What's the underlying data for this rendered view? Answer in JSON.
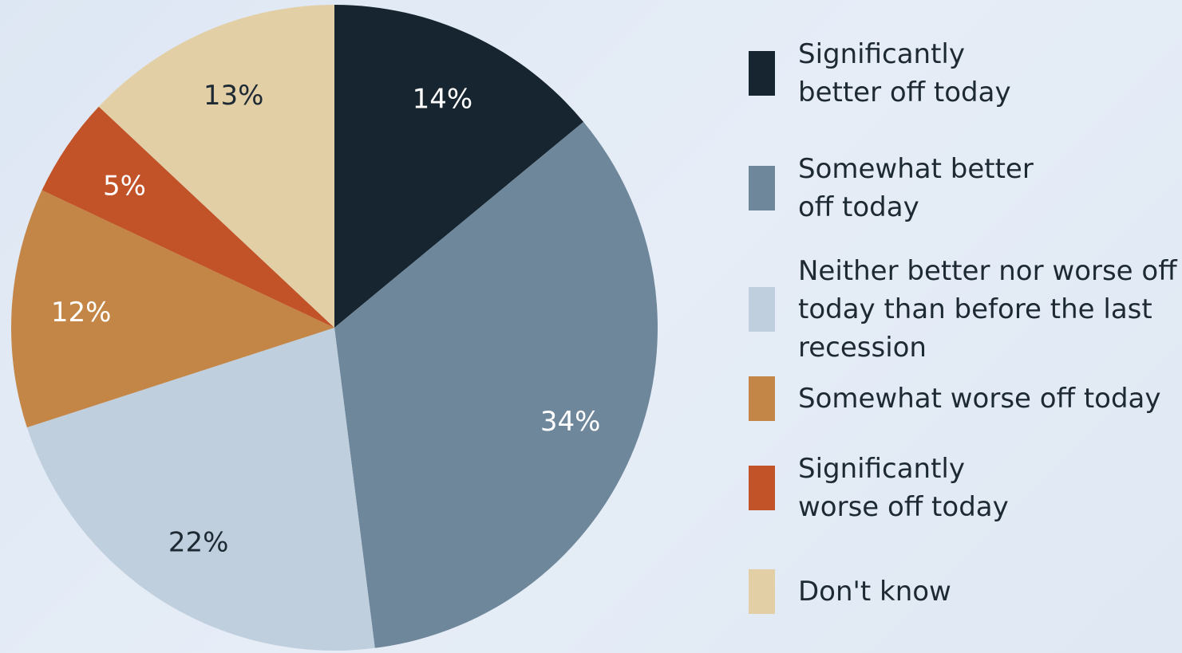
{
  "chart_data": {
    "type": "pie",
    "slices": [
      {
        "label": "Significantly better off today",
        "value": 14,
        "value_label": "14%",
        "color": "#16252f",
        "label_color": "#ffffff"
      },
      {
        "label": "Somewhat better off today",
        "value": 34,
        "value_label": "34%",
        "color": "#6e879b",
        "label_color": "#ffffff"
      },
      {
        "label": "Neither better nor worse off today than before the last recession",
        "value": 22,
        "value_label": "22%",
        "color": "#bfcfdd",
        "label_color": "#1e2a33"
      },
      {
        "label": "Somewhat worse off today",
        "value": 12,
        "value_label": "12%",
        "color": "#c38647",
        "label_color": "#ffffff"
      },
      {
        "label": "Significantly worse off today",
        "value": 5,
        "value_label": "5%",
        "color": "#c25227",
        "label_color": "#ffffff"
      },
      {
        "label": "Don't know",
        "value": 13,
        "value_label": "13%",
        "color": "#e3cfa6",
        "label_color": "#1e2a33"
      }
    ],
    "legend_position": "right"
  },
  "legend": {
    "items": [
      {
        "lines": [
          "Significantly",
          "better off today"
        ],
        "color": "#16252f"
      },
      {
        "lines": [
          "Somewhat better",
          "off today"
        ],
        "color": "#6e879b"
      },
      {
        "lines": [
          "Neither better nor worse off",
          "today than before the last",
          "recession"
        ],
        "color": "#bfcfdd"
      },
      {
        "lines": [
          "Somewhat worse off today"
        ],
        "color": "#c38647"
      },
      {
        "lines": [
          "Significantly",
          "worse off today"
        ],
        "color": "#c25227"
      },
      {
        "lines": [
          "Don't know"
        ],
        "color": "#e3cfa6"
      }
    ]
  }
}
